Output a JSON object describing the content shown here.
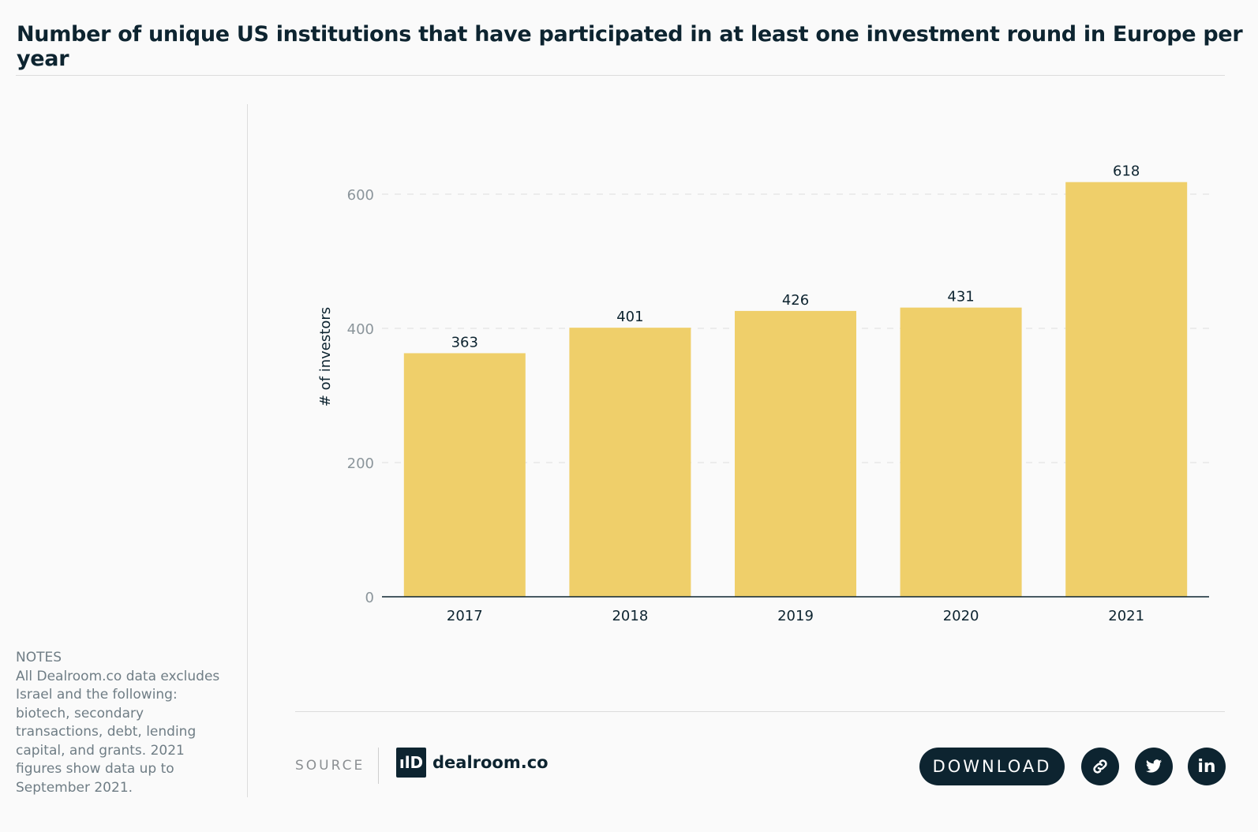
{
  "title": "Number of unique US institutions that have participated in at least one investment round in Europe per year",
  "notes": {
    "heading": "NOTES",
    "text": "All Dealroom.co data excludes Israel and the following: biotech, secondary transactions, debt, lending capital, and grants. 2021 figures show data up to September 2021."
  },
  "footer": {
    "source_label": "SOURCE",
    "logo_text": "dealroom.co",
    "logo_mark": "ılD",
    "download_label": "DOWNLOAD",
    "icons": [
      "link-icon",
      "twitter-icon",
      "linkedin-icon"
    ],
    "linkedin_glyph": "in"
  },
  "colors": {
    "bar": "#efcf6a",
    "dark": "#0d2430",
    "grid": "#dddddd",
    "tick": "#8b959b"
  },
  "chart_data": {
    "type": "bar",
    "title": "Number of unique US institutions that have participated in at least one investment round in Europe per year",
    "categories": [
      "2017",
      "2018",
      "2019",
      "2020",
      "2021"
    ],
    "values": [
      363,
      401,
      426,
      431,
      618
    ],
    "xlabel": "",
    "ylabel": "# of investors",
    "ylim": [
      0,
      600
    ],
    "yticks": [
      0,
      200,
      400,
      600
    ],
    "grid": true,
    "data_labels": true
  }
}
